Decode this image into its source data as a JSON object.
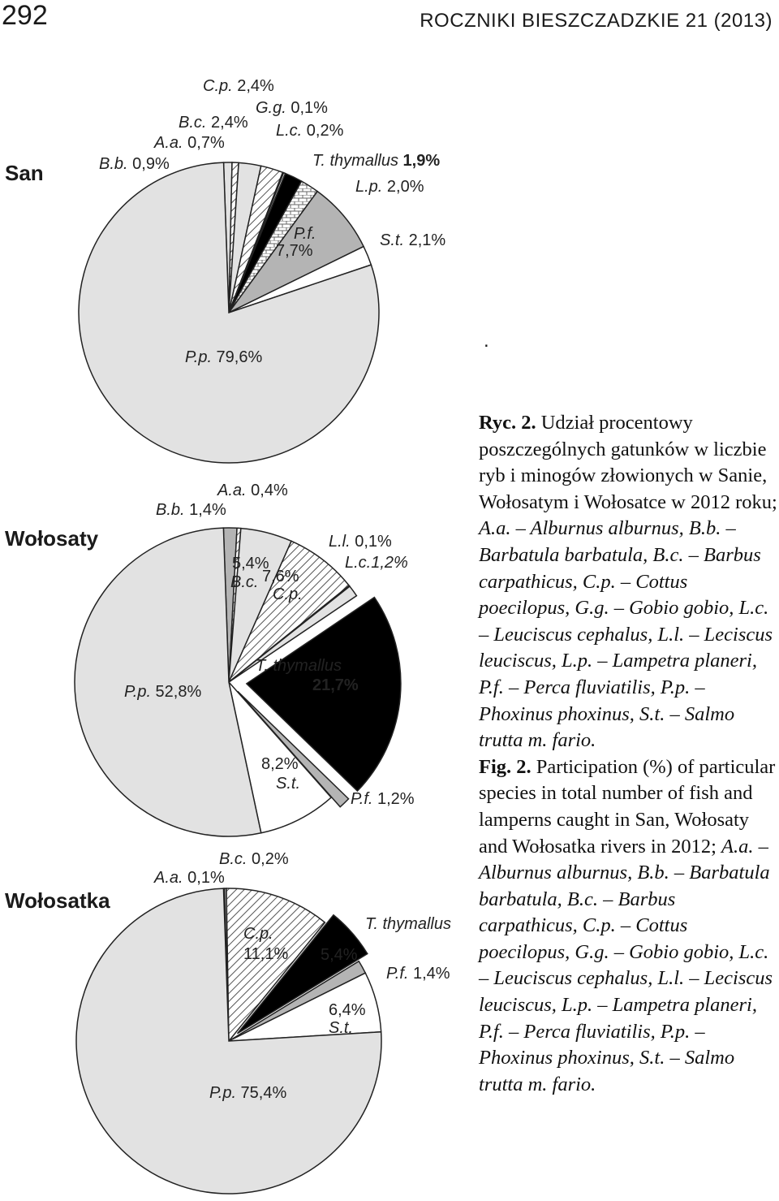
{
  "header": {
    "page_number": "292",
    "journal": "ROCZNIKI BIESZCZADZKIE 21 (2013)"
  },
  "stray_dot": ".",
  "caption": {
    "pl_label": "Ryc. 2.",
    "pl_text": " Udział procentowy poszczególnych gatunków w liczbie ryb i minogów złowionych w Sanie, Wołosatym i Wołosatce w 2012 roku; ",
    "pl_keys": "A.a. – Alburnus alburnus, B.b. – Barbatula barbatula, B.c. – Barbus carpathicus, C.p. – Cottus poecilopus, G.g. – Gobio gobio, L.c. – Leuciscus cephalus, L.l. – Leciscus leuciscus, L.p. – Lampetra planeri, P.f. – Perca fluviatilis, P.p. – Phoxinus phoxinus, S.t. – Salmo trutta m. fario.",
    "en_label": "Fig. 2.",
    "en_text": " Participation (%) of particular species in total number of fish and lamperns caught in San, Wołosaty and Wołosatka rivers in 2012; ",
    "en_keys": "A.a. – Alburnus alburnus, B.b. – Barbatula barbatula, B.c. – Barbus carpathicus, C.p. – Cottus poecilopus, G.g. – Gobio gobio, L.c. – Leuciscus cephalus, L.l. – Leciscus leuciscus, L.p. – Lampetra planeri, P.f. – Perca fluviatilis, P.p. – Phoxinus phoxinus, S.t. – Salmo trutta m. fario."
  },
  "chart_data": [
    {
      "type": "pie",
      "river": "San",
      "slices": [
        {
          "code": "B.b.",
          "label": "B.b. 0,9%",
          "value": 0.9,
          "fill": "light"
        },
        {
          "code": "A.a.",
          "label": "A.a. 0,7%",
          "value": 0.7,
          "fill": "hatch"
        },
        {
          "code": "B.c.",
          "label": "B.c. 2,4%",
          "value": 2.4,
          "fill": "light"
        },
        {
          "code": "C.p.",
          "label": "C.p. 2,4%",
          "value": 2.4,
          "fill": "hatch"
        },
        {
          "code": "G.g.",
          "label": "G.g. 0,1%",
          "value": 0.1,
          "fill": "light"
        },
        {
          "code": "L.c.",
          "label": "L.c. 0,2%",
          "value": 0.2,
          "fill": "light"
        },
        {
          "code": "T. thymallus",
          "label": "T. thymallus 1,9%",
          "value": 1.9,
          "fill": "black"
        },
        {
          "code": "L.p.",
          "label": "L.p. 2,0%",
          "value": 2.0,
          "fill": "brick"
        },
        {
          "code": "P.f.",
          "label": "P.f. 7,7%",
          "value": 7.7,
          "fill": "mid"
        },
        {
          "code": "S.t.",
          "label": "S.t. 2,1%",
          "value": 2.1,
          "fill": "white"
        },
        {
          "code": "P.p.",
          "label": "P.p. 79,6%",
          "value": 79.6,
          "fill": "light"
        }
      ]
    },
    {
      "type": "pie",
      "river": "Wołosaty",
      "slices": [
        {
          "code": "B.b.",
          "label": "B.b. 1,4%",
          "value": 1.4,
          "fill": "mid"
        },
        {
          "code": "A.a.",
          "label": "A.a. 0,4%",
          "value": 0.4,
          "fill": "hatch"
        },
        {
          "code": "B.c.",
          "label": "5,4% B.c.",
          "value": 5.4,
          "fill": "light"
        },
        {
          "code": "C.p.",
          "label": "7,6% C.p.",
          "value": 7.6,
          "fill": "hatch"
        },
        {
          "code": "L.l.",
          "label": "L.l. 0,1%",
          "value": 0.1,
          "fill": "light"
        },
        {
          "code": "L.c.",
          "label": "L.c.1,2%",
          "value": 1.2,
          "fill": "light"
        },
        {
          "code": "T. thymallus",
          "label": "T. thymallus 21,7%",
          "value": 21.7,
          "fill": "black"
        },
        {
          "code": "P.f.",
          "label": "P.f. 1,2%",
          "value": 1.2,
          "fill": "mid"
        },
        {
          "code": "S.t.",
          "label": "8,2% S.t.",
          "value": 8.2,
          "fill": "white"
        },
        {
          "code": "P.p.",
          "label": "P.p. 52,8%",
          "value": 52.8,
          "fill": "light"
        }
      ]
    },
    {
      "type": "pie",
      "river": "Wołosatka",
      "slices": [
        {
          "code": "A.a.",
          "label": "A.a. 0,1%",
          "value": 0.1,
          "fill": "hatch"
        },
        {
          "code": "B.c.",
          "label": "B.c. 0,2%",
          "value": 0.2,
          "fill": "light"
        },
        {
          "code": "C.p.",
          "label": "C.p. 11,1%",
          "value": 11.1,
          "fill": "hatch"
        },
        {
          "code": "T. thymallus",
          "label": "T. thymallus 5,4%",
          "value": 5.4,
          "fill": "black"
        },
        {
          "code": "P.f.",
          "label": "P.f. 1,4%",
          "value": 1.4,
          "fill": "mid"
        },
        {
          "code": "S.t.",
          "label": "6,4% S.t.",
          "value": 6.4,
          "fill": "white"
        },
        {
          "code": "P.p.",
          "label": "P.p. 75,4%",
          "value": 75.4,
          "fill": "light"
        }
      ]
    }
  ]
}
